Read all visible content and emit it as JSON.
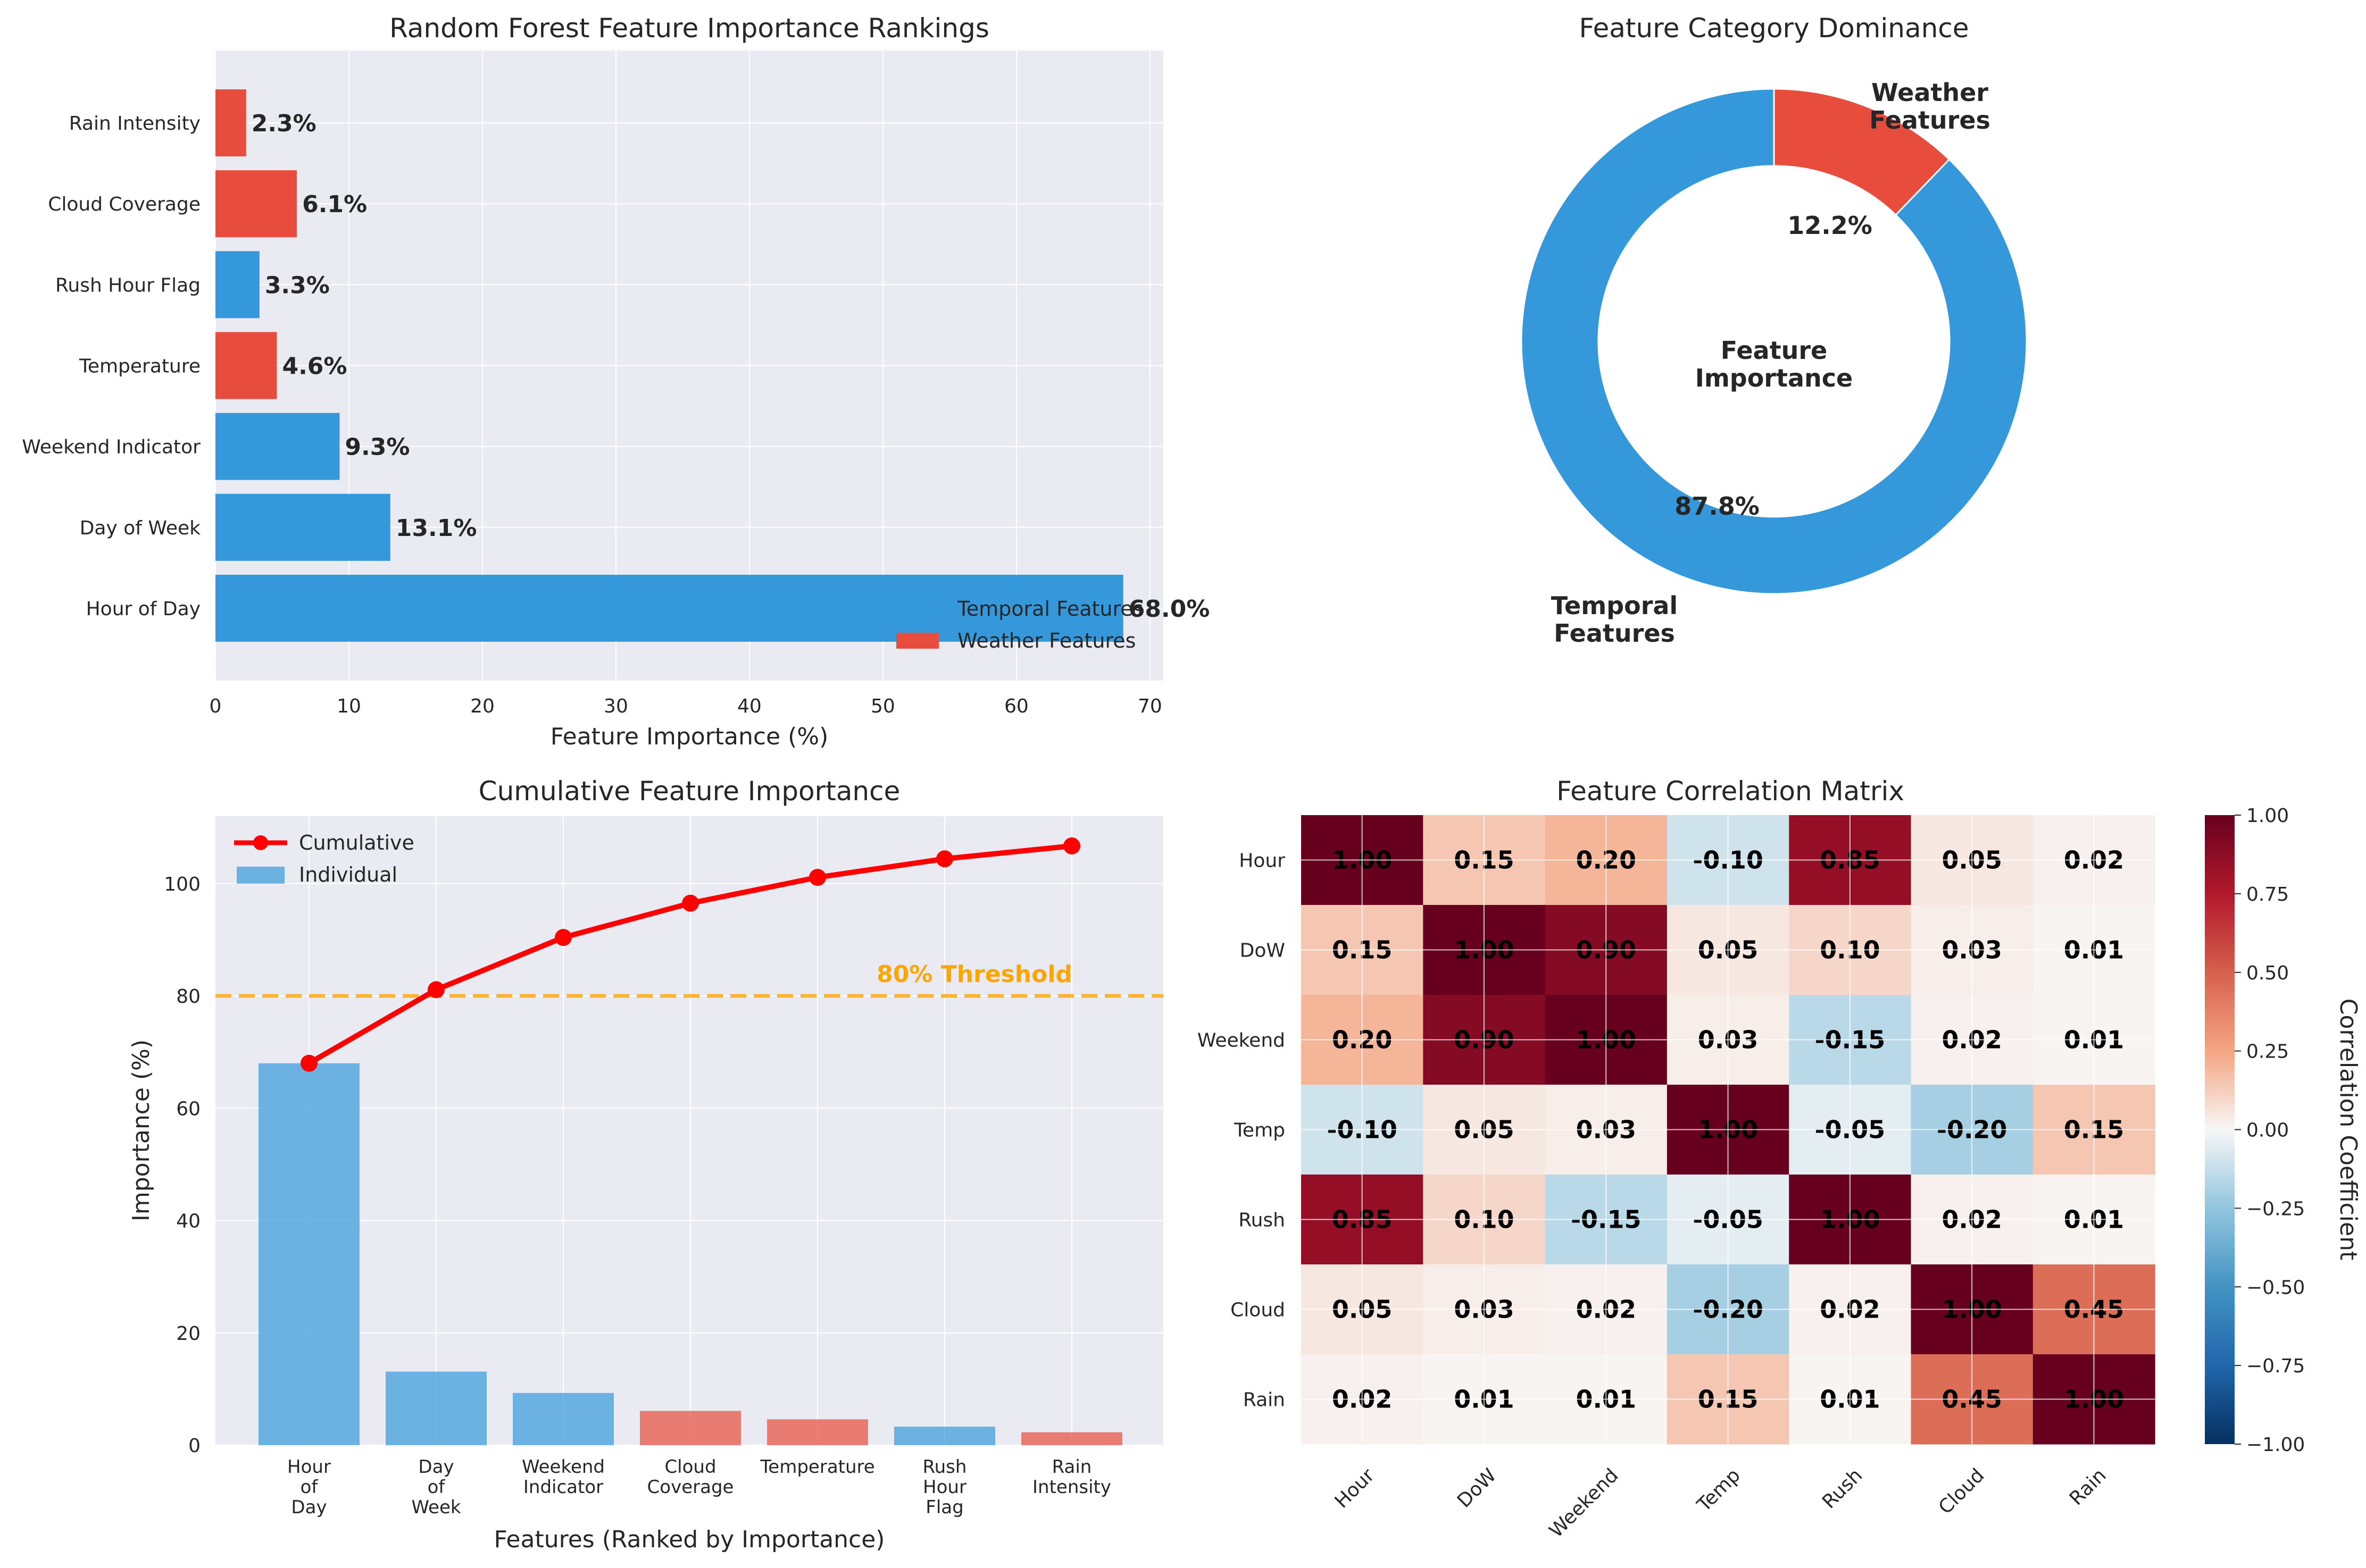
{
  "colors": {
    "temporal": "#3498db",
    "weather": "#e74c3c",
    "cumulative": "#ff0000",
    "threshold": "#ffa500",
    "axes_bg": "#eaeaf2"
  },
  "chart_data": [
    {
      "type": "bar",
      "orientation": "horizontal",
      "title": "Random Forest Feature Importance Rankings",
      "xlabel": "Feature Importance (%)",
      "ylabel": "",
      "xlim": [
        0,
        71
      ],
      "xticks": [
        "0",
        "10",
        "20",
        "30",
        "40",
        "50",
        "60",
        "70"
      ],
      "categories": [
        "Hour of Day",
        "Day of Week",
        "Weekend Indicator",
        "Temperature",
        "Rush Hour Flag",
        "Cloud Coverage",
        "Rain Intensity"
      ],
      "values": [
        68.0,
        13.1,
        9.3,
        4.6,
        3.3,
        6.1,
        2.3
      ],
      "groups": [
        "temporal",
        "temporal",
        "temporal",
        "weather",
        "temporal",
        "weather",
        "weather"
      ],
      "value_labels": [
        "68.0%",
        "13.1%",
        "9.3%",
        "4.6%",
        "3.3%",
        "6.1%",
        "2.3%"
      ],
      "legend": [
        "Temporal Features",
        "Weather Features"
      ],
      "legend_position": "lower-right",
      "grid": true
    },
    {
      "type": "pie",
      "style": "donut",
      "title": "Feature Category Dominance",
      "center_text": [
        "Feature",
        "Importance"
      ],
      "slices": [
        {
          "label": [
            "Weather",
            "Features"
          ],
          "value": 12.2,
          "pct": "12.2%",
          "group": "weather"
        },
        {
          "label": [
            "Temporal",
            "Features"
          ],
          "value": 87.8,
          "pct": "87.8%",
          "group": "temporal"
        }
      ]
    },
    {
      "type": "bar",
      "title": "Cumulative Feature Importance",
      "xlabel": "Features (Ranked by Importance)",
      "ylabel": "Importance (%)",
      "ylim": [
        0,
        112
      ],
      "yticks": [
        "0",
        "20",
        "40",
        "60",
        "80",
        "100"
      ],
      "categories": [
        [
          "Hour",
          "of",
          "Day"
        ],
        [
          "Day",
          "of",
          "Week"
        ],
        [
          "Weekend",
          "Indicator"
        ],
        [
          "Cloud",
          "Coverage"
        ],
        [
          "Temperature"
        ],
        [
          "Rush",
          "Hour",
          "Flag"
        ],
        [
          "Rain",
          "Intensity"
        ]
      ],
      "values": [
        68.0,
        13.1,
        9.3,
        6.1,
        4.6,
        3.3,
        2.3
      ],
      "groups": [
        "temporal",
        "temporal",
        "temporal",
        "weather",
        "weather",
        "temporal",
        "weather"
      ],
      "cumulative": [
        68.0,
        81.1,
        90.4,
        96.5,
        101.1,
        104.4,
        106.7
      ],
      "threshold": 80,
      "threshold_label": "80% Threshold",
      "legend": [
        "Cumulative",
        "Individual"
      ],
      "legend_position": "top-left",
      "grid": true
    },
    {
      "type": "heatmap",
      "title": "Feature Correlation Matrix",
      "labels": [
        "Hour",
        "DoW",
        "Weekend",
        "Temp",
        "Rush",
        "Cloud",
        "Rain"
      ],
      "matrix": [
        [
          1.0,
          0.15,
          0.2,
          -0.1,
          0.85,
          0.05,
          0.02
        ],
        [
          0.15,
          1.0,
          0.9,
          0.05,
          0.1,
          0.03,
          0.01
        ],
        [
          0.2,
          0.9,
          1.0,
          0.03,
          -0.15,
          0.02,
          0.01
        ],
        [
          -0.1,
          0.05,
          0.03,
          1.0,
          -0.05,
          -0.2,
          0.15
        ],
        [
          0.85,
          0.1,
          -0.15,
          -0.05,
          1.0,
          0.02,
          0.01
        ],
        [
          0.05,
          0.03,
          0.02,
          -0.2,
          0.02,
          1.0,
          0.45
        ],
        [
          0.02,
          0.01,
          0.01,
          0.15,
          0.01,
          0.45,
          1.0
        ]
      ],
      "colorbar_label": "Correlation Coefficient",
      "vmin": -1.0,
      "vmax": 1.0,
      "colorbar_ticks": [
        "1.00",
        "0.75",
        "0.50",
        "0.25",
        "0.00",
        "−0.25",
        "−0.50",
        "−0.75",
        "−1.00"
      ],
      "colormap": "RdBu_r"
    }
  ]
}
